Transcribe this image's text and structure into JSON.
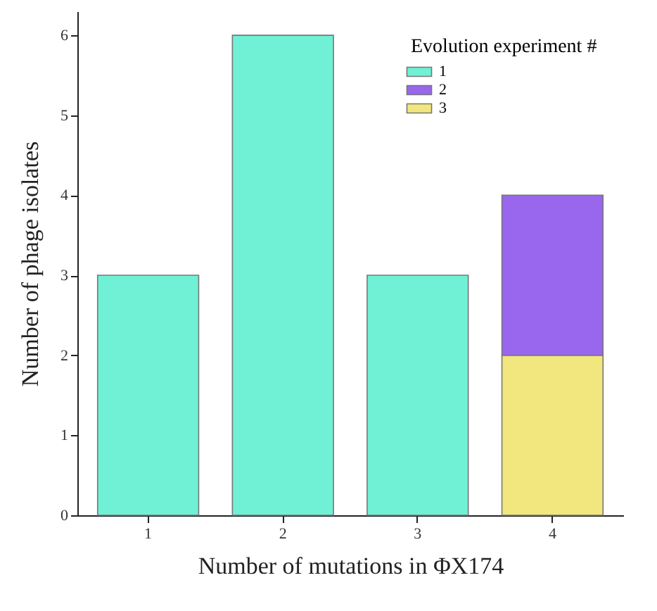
{
  "chart_data": {
    "type": "bar",
    "stacked": true,
    "xlabel": "Number of mutations in ΦX174",
    "ylabel": "Number of phage isolates",
    "legend_title": "Evolution experiment #",
    "legend": "top right",
    "categories": [
      "1",
      "2",
      "3",
      "4"
    ],
    "series": [
      {
        "name": "1",
        "color": "#70f0d4",
        "values": [
          3,
          6,
          3,
          null
        ]
      },
      {
        "name": "3",
        "color": "#f2e67e",
        "values": [
          null,
          null,
          null,
          2
        ]
      },
      {
        "name": "2",
        "color": "#9966ee",
        "values": [
          null,
          null,
          null,
          2
        ]
      }
    ],
    "ylim": [
      0,
      6.3
    ],
    "yticks": [
      0,
      1,
      2,
      3,
      4,
      5,
      6
    ],
    "grid": false
  }
}
